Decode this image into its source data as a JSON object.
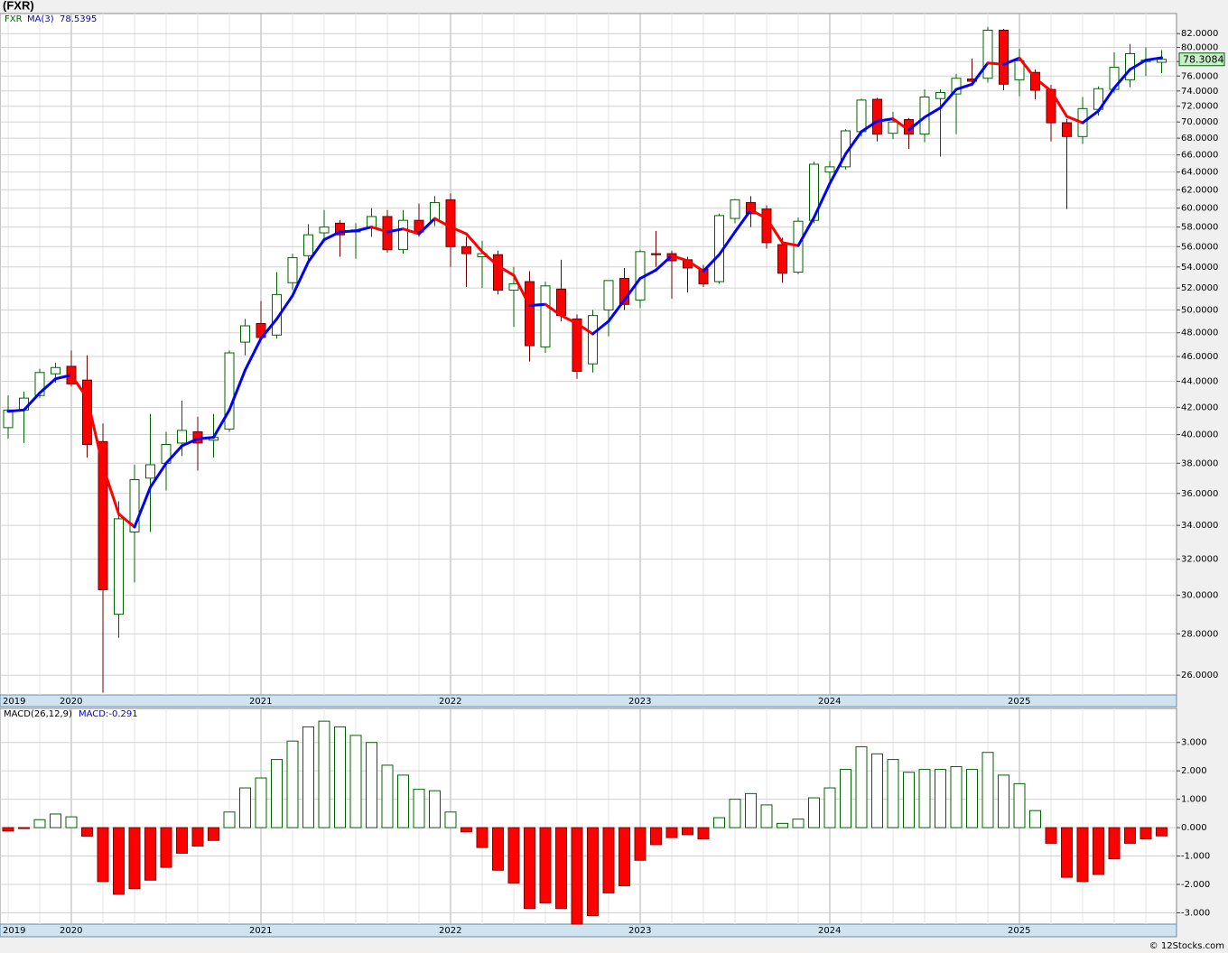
{
  "chart_data": [
    {
      "type": "candlestick",
      "title": "(FXR)",
      "series_name": "FXR",
      "categories": [
        "2019",
        null,
        null,
        null,
        "2020",
        null,
        null,
        null,
        null,
        null,
        null,
        null,
        null,
        null,
        null,
        null,
        "2021",
        null,
        null,
        null,
        null,
        null,
        null,
        null,
        null,
        null,
        null,
        null,
        "2022",
        null,
        null,
        null,
        null,
        null,
        null,
        null,
        null,
        null,
        null,
        null,
        "2023",
        null,
        null,
        null,
        null,
        null,
        null,
        null,
        null,
        null,
        null,
        null,
        "2024",
        null,
        null,
        null,
        null,
        null,
        null,
        null,
        null,
        null,
        null,
        null,
        "2025",
        null,
        null,
        null,
        null,
        null,
        null,
        null,
        null,
        null
      ],
      "open": [
        40.5,
        41.8,
        42.9,
        44.6,
        45.2,
        44.1,
        39.5,
        29.0,
        33.6,
        37.0,
        38.0,
        39.4,
        40.2,
        39.6,
        40.4,
        47.2,
        48.8,
        47.8,
        52.5,
        55.1,
        57.4,
        58.4,
        57.5,
        57.9,
        59.1,
        55.7,
        58.7,
        58.7,
        60.9,
        56.0,
        55.0,
        55.2,
        51.8,
        52.6,
        46.8,
        51.9,
        49.2,
        45.4,
        50.0,
        52.9,
        50.9,
        55.3,
        55.3,
        54.7,
        53.8,
        52.6,
        58.9,
        60.6,
        59.9,
        56.2,
        53.5,
        58.7,
        64.0,
        64.6,
        68.8,
        72.9,
        68.6,
        70.3,
        68.5,
        73.0,
        73.6,
        75.6,
        75.7,
        82.5,
        75.5,
        76.5,
        74.2,
        69.9,
        68.2,
        71.6,
        74.2,
        75.5,
        78.0,
        77.9
      ],
      "high": [
        42.9,
        43.2,
        45.0,
        45.5,
        46.5,
        46.1,
        40.8,
        35.5,
        37.9,
        41.5,
        40.2,
        42.5,
        41.3,
        41.5,
        46.5,
        49.2,
        50.8,
        53.5,
        55.3,
        58.3,
        59.8,
        58.7,
        58.4,
        60.0,
        59.8,
        59.8,
        60.5,
        61.3,
        61.6,
        57.0,
        56.6,
        55.6,
        54.0,
        53.6,
        52.6,
        54.7,
        49.6,
        50.0,
        52.7,
        53.9,
        55.7,
        57.6,
        55.6,
        55.0,
        54.2,
        59.4,
        61.0,
        61.3,
        60.3,
        56.9,
        59.0,
        65.2,
        65.3,
        69.1,
        73.0,
        73.1,
        71.3,
        70.5,
        74.2,
        74.2,
        76.3,
        78.4,
        83.0,
        82.7,
        79.8,
        76.9,
        74.8,
        70.4,
        73.2,
        74.6,
        79.3,
        80.5,
        80.0,
        79.6
      ],
      "low": [
        39.7,
        39.4,
        42.7,
        43.9,
        43.6,
        38.4,
        25.2,
        27.8,
        30.7,
        33.6,
        36.2,
        38.5,
        37.5,
        38.4,
        40.2,
        46.1,
        47.3,
        47.5,
        51.8,
        54.5,
        56.5,
        55.0,
        54.8,
        57.0,
        55.4,
        55.3,
        57.0,
        58.1,
        54.0,
        52.1,
        52.0,
        51.4,
        48.5,
        45.6,
        46.3,
        49.0,
        44.2,
        44.7,
        47.7,
        50.0,
        50.2,
        54.0,
        51.0,
        51.6,
        52.1,
        52.4,
        58.4,
        58.0,
        55.8,
        52.5,
        53.3,
        58.4,
        63.0,
        64.3,
        68.2,
        67.6,
        67.9,
        66.7,
        67.5,
        65.8,
        68.5,
        74.9,
        75.1,
        74.1,
        73.3,
        72.9,
        67.6,
        59.9,
        67.3,
        70.8,
        73.7,
        74.5,
        76.0,
        76.4
      ],
      "close": [
        41.8,
        42.7,
        44.7,
        45.1,
        43.8,
        39.3,
        30.3,
        34.4,
        36.9,
        37.9,
        39.3,
        40.3,
        39.4,
        39.8,
        46.3,
        48.6,
        47.6,
        51.4,
        54.9,
        57.2,
        58.0,
        57.2,
        57.7,
        59.1,
        55.7,
        58.7,
        57.5,
        60.6,
        56.0,
        55.3,
        55.3,
        51.8,
        52.4,
        46.9,
        52.2,
        49.5,
        44.8,
        49.5,
        52.7,
        50.5,
        55.5,
        55.2,
        54.6,
        53.9,
        52.4,
        59.2,
        60.9,
        59.4,
        56.4,
        53.4,
        58.6,
        64.9,
        64.6,
        68.9,
        72.8,
        68.5,
        70.0,
        68.5,
        73.2,
        73.8,
        75.7,
        75.3,
        82.5,
        74.9,
        78.1,
        74.1,
        69.9,
        68.2,
        71.7,
        74.3,
        77.2,
        79.1,
        78.2,
        78.3084
      ],
      "up_color": "#006400",
      "down_color": "#ff0000",
      "ma": {
        "name": "MA(3)",
        "value_label": "78.5395",
        "up_color": "#0000ff",
        "down_color": "#ff0000",
        "values": [
          41.7,
          41.8,
          43.1,
          44.2,
          44.5,
          42.7,
          37.8,
          34.7,
          33.9,
          36.4,
          38.0,
          39.2,
          39.7,
          39.8,
          41.8,
          44.9,
          47.5,
          49.2,
          51.3,
          54.5,
          56.7,
          57.5,
          57.6,
          58.0,
          57.5,
          57.8,
          57.3,
          58.9,
          58.0,
          57.3,
          55.5,
          54.1,
          53.2,
          50.4,
          50.5,
          49.5,
          48.8,
          47.9,
          49.0,
          50.9,
          52.9,
          53.7,
          55.1,
          54.6,
          53.6,
          55.2,
          57.5,
          59.8,
          58.9,
          56.4,
          56.1,
          59.0,
          62.7,
          66.1,
          68.8,
          70.1,
          70.4,
          69.0,
          70.6,
          71.8,
          74.2,
          74.9,
          77.8,
          77.6,
          78.5,
          75.7,
          74.0,
          70.7,
          69.9,
          71.4,
          74.4,
          76.9,
          78.2,
          78.5395
        ]
      },
      "last_price": {
        "value": 78.3084,
        "label": "78.3084"
      },
      "log_scale": true,
      "ylim": [
        25.1,
        85
      ],
      "yticks": [
        {
          "value": 26,
          "label": "26.0000"
        },
        {
          "value": 28,
          "label": "28.0000"
        },
        {
          "value": 30,
          "label": "30.0000"
        },
        {
          "value": 32,
          "label": "32.0000"
        },
        {
          "value": 34,
          "label": "34.0000"
        },
        {
          "value": 36,
          "label": "36.0000"
        },
        {
          "value": 38,
          "label": "38.0000"
        },
        {
          "value": 40,
          "label": "40.0000"
        },
        {
          "value": 42,
          "label": "42.0000"
        },
        {
          "value": 44,
          "label": "44.0000"
        },
        {
          "value": 46,
          "label": "46.0000"
        },
        {
          "value": 48,
          "label": "48.0000"
        },
        {
          "value": 50,
          "label": "50.0000"
        },
        {
          "value": 52,
          "label": "52.0000"
        },
        {
          "value": 54,
          "label": "54.0000"
        },
        {
          "value": 56,
          "label": "56.0000"
        },
        {
          "value": 58,
          "label": "58.0000"
        },
        {
          "value": 60,
          "label": "60.0000"
        },
        {
          "value": 62,
          "label": "62.0000"
        },
        {
          "value": 64,
          "label": "64.0000"
        },
        {
          "value": 66,
          "label": "66.0000"
        },
        {
          "value": 68,
          "label": "68.0000"
        },
        {
          "value": 70,
          "label": "70.0000"
        },
        {
          "value": 72,
          "label": "72.0000"
        },
        {
          "value": 74,
          "label": "74.0000"
        },
        {
          "value": 76,
          "label": "76.0000"
        },
        {
          "value": 78,
          "label": "78.0000"
        },
        {
          "value": 80,
          "label": "80.0000"
        },
        {
          "value": 82,
          "label": "82.0000"
        }
      ],
      "grid": true
    },
    {
      "type": "bar",
      "title": "MACD(26,12,9)",
      "subtitle": "MACD:-0.291",
      "categories": [
        "2019",
        null,
        null,
        null,
        "2020",
        null,
        null,
        null,
        null,
        null,
        null,
        null,
        null,
        null,
        null,
        null,
        "2021",
        null,
        null,
        null,
        null,
        null,
        null,
        null,
        null,
        null,
        null,
        null,
        "2022",
        null,
        null,
        null,
        null,
        null,
        null,
        null,
        null,
        null,
        null,
        null,
        "2023",
        null,
        null,
        null,
        null,
        null,
        null,
        null,
        null,
        null,
        null,
        null,
        "2024",
        null,
        null,
        null,
        null,
        null,
        null,
        null,
        null,
        null,
        null,
        null,
        "2025",
        null,
        null,
        null,
        null,
        null,
        null,
        null,
        null,
        null
      ],
      "values": [
        -0.12,
        -0.02,
        0.28,
        0.48,
        0.38,
        -0.3,
        -1.9,
        -2.35,
        -2.15,
        -1.85,
        -1.4,
        -0.9,
        -0.65,
        -0.45,
        0.55,
        1.4,
        1.75,
        2.4,
        3.05,
        3.55,
        3.75,
        3.55,
        3.25,
        3.0,
        2.2,
        1.85,
        1.35,
        1.3,
        0.55,
        -0.15,
        -0.7,
        -1.5,
        -1.95,
        -2.85,
        -2.65,
        -2.85,
        -3.4,
        -3.1,
        -2.3,
        -2.05,
        -1.15,
        -0.6,
        -0.35,
        -0.25,
        -0.4,
        0.35,
        1.0,
        1.2,
        0.8,
        0.15,
        0.3,
        1.05,
        1.4,
        2.05,
        2.85,
        2.6,
        2.4,
        1.95,
        2.05,
        2.05,
        2.15,
        2.05,
        2.65,
        1.85,
        1.55,
        0.6,
        -0.55,
        -1.75,
        -1.9,
        -1.65,
        -1.1,
        -0.55,
        -0.4,
        -0.291
      ],
      "up_color": "#006400",
      "down_color": "#ff0000",
      "ylim": [
        -3.4,
        4.2
      ],
      "yticks": [
        {
          "value": -3,
          "label": "-3.000"
        },
        {
          "value": -2,
          "label": "-2.000"
        },
        {
          "value": -1,
          "label": "-1.000"
        },
        {
          "value": 0,
          "label": "0.000"
        },
        {
          "value": 1,
          "label": "1.000"
        },
        {
          "value": 2,
          "label": "2.000"
        },
        {
          "value": 3,
          "label": "3.000"
        }
      ],
      "grid": true
    }
  ],
  "footer": "© 12Stocks.com"
}
